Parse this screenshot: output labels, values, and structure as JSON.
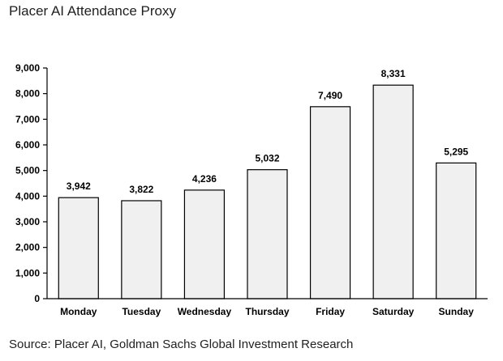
{
  "title": "Placer AI Attendance Proxy",
  "source": "Source: Placer AI, Goldman Sachs Global Investment Research",
  "chart_data": {
    "type": "bar",
    "title": "Placer AI Attendance Proxy",
    "xlabel": "",
    "ylabel": "",
    "categories": [
      "Monday",
      "Tuesday",
      "Wednesday",
      "Thursday",
      "Friday",
      "Saturday",
      "Sunday"
    ],
    "values": [
      3942,
      3822,
      4236,
      5032,
      7490,
      8331,
      5295
    ],
    "value_labels": [
      "3,942",
      "3,822",
      "4,236",
      "5,032",
      "7,490",
      "8,331",
      "5,295"
    ],
    "ylim": [
      0,
      9000
    ],
    "yticks": [
      0,
      1000,
      2000,
      3000,
      4000,
      5000,
      6000,
      7000,
      8000,
      9000
    ],
    "ytick_labels": [
      "0",
      "1,000",
      "2,000",
      "3,000",
      "4,000",
      "5,000",
      "6,000",
      "7,000",
      "8,000",
      "9,000"
    ],
    "grid": false,
    "bar_color": "#f0f0f0",
    "bar_edge_color": "#000000"
  }
}
